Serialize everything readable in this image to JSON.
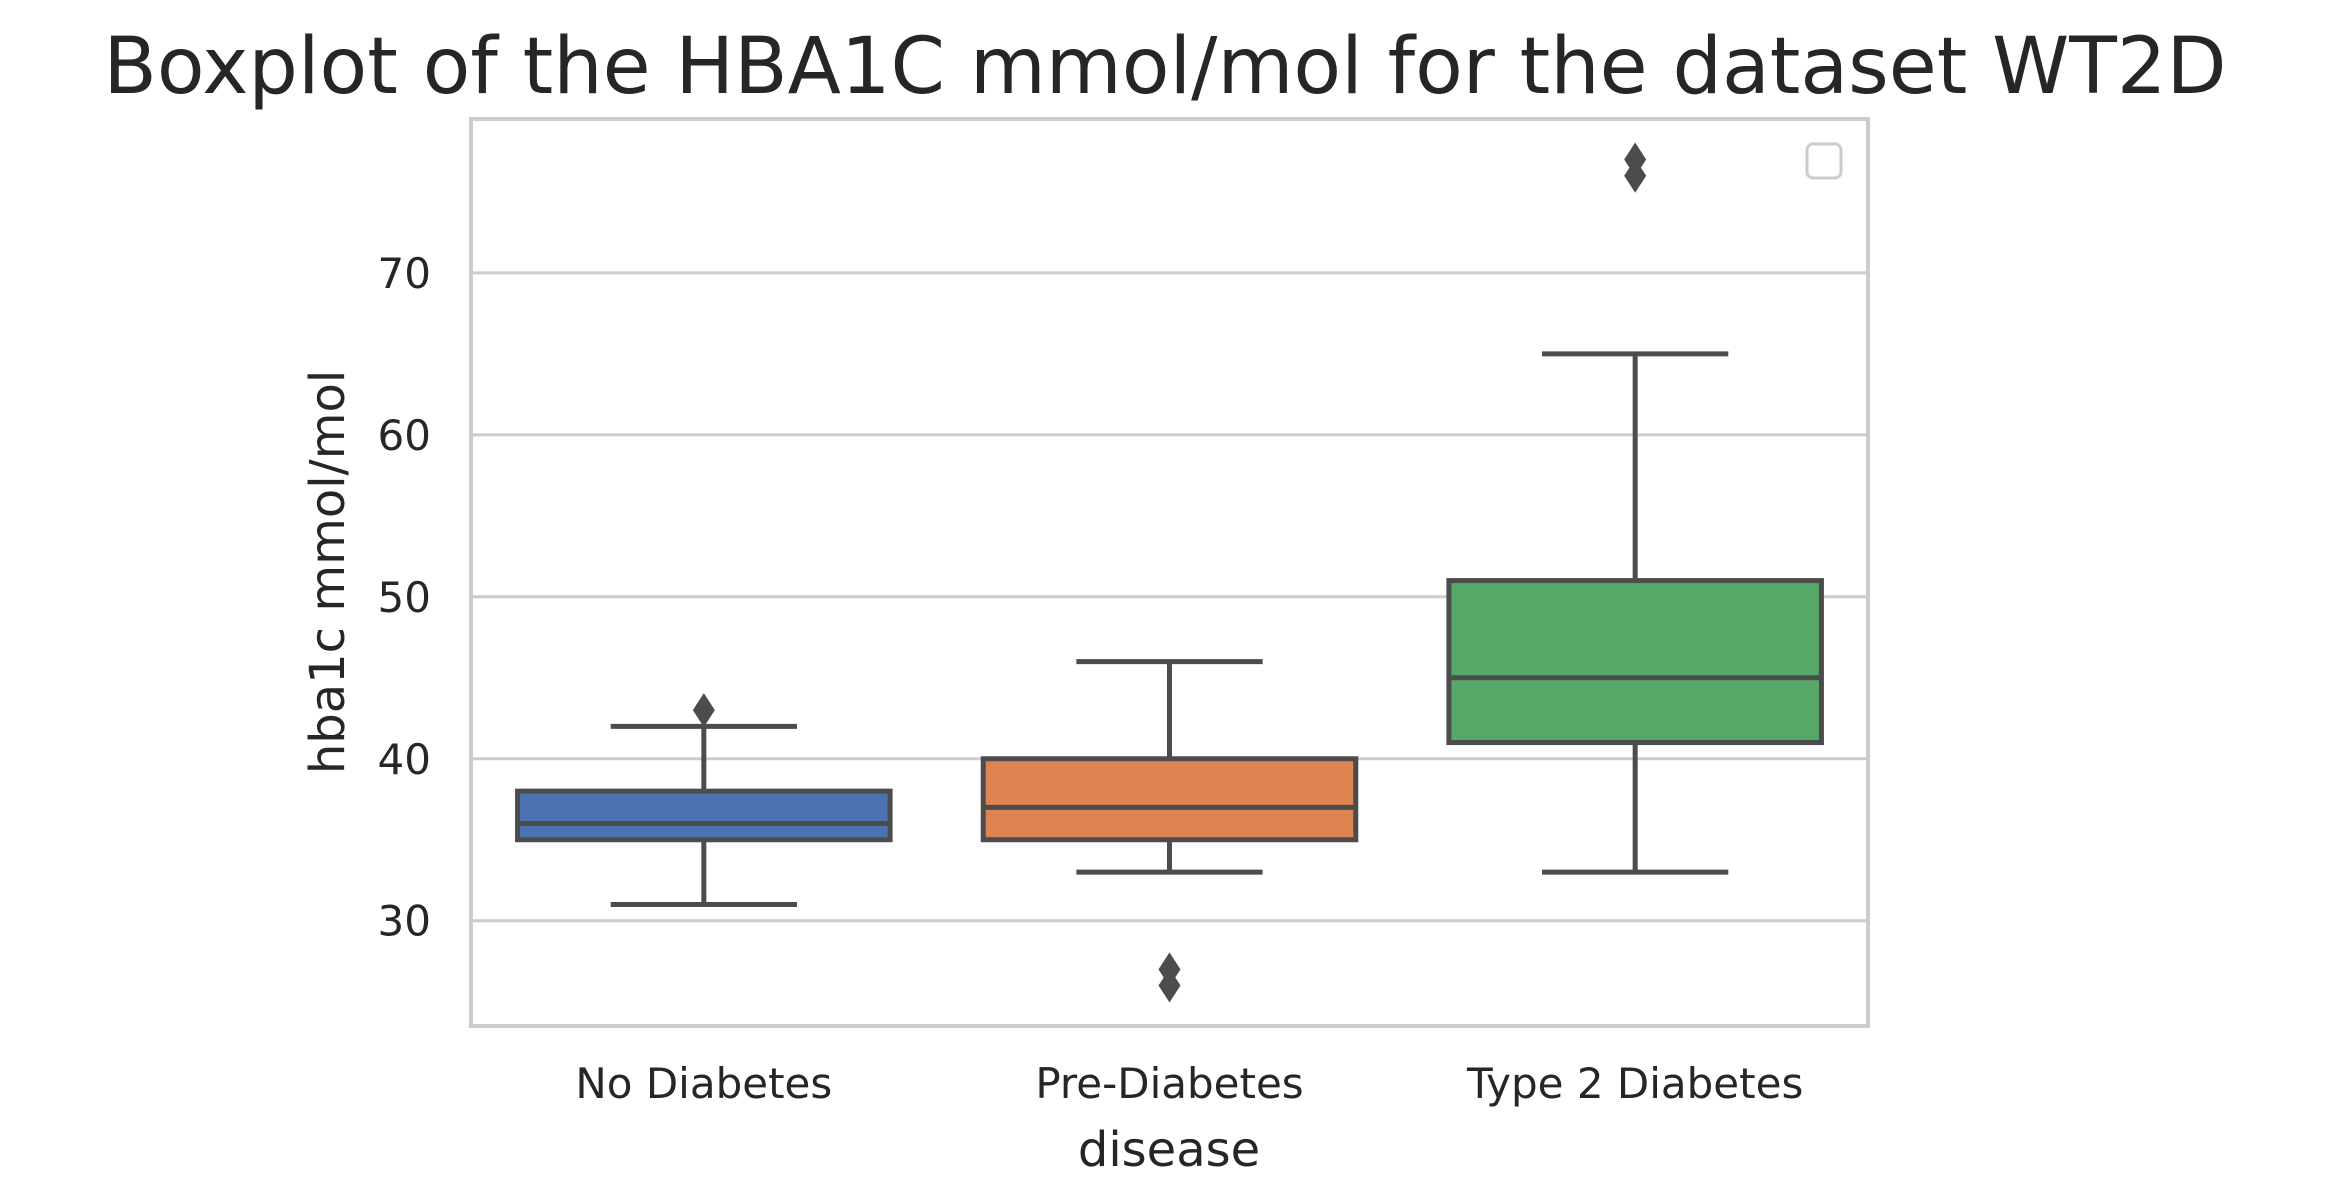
{
  "chart_data": {
    "type": "boxplot",
    "title": "Boxplot of the HBA1C mmol/mol for the dataset WT2D",
    "xlabel": "disease",
    "ylabel": "hba1c mmol/mol",
    "ylim": [
      23.5,
      79.5
    ],
    "yticks": [
      30,
      40,
      50,
      60,
      70
    ],
    "grid": true,
    "legend": "top-right (empty)",
    "categories": [
      "No Diabetes",
      "Pre-Diabetes",
      "Type 2 Diabetes"
    ],
    "boxes": [
      {
        "category": "No Diabetes",
        "whisker_low": 31,
        "q1": 35,
        "median": 36,
        "q3": 38,
        "whisker_high": 42,
        "outliers": [
          43
        ],
        "color": "#4c72b0"
      },
      {
        "category": "Pre-Diabetes",
        "whisker_low": 33,
        "q1": 35,
        "median": 37,
        "q3": 40,
        "whisker_high": 46,
        "outliers": [
          26,
          27
        ],
        "color": "#dd8452"
      },
      {
        "category": "Type 2 Diabetes",
        "whisker_low": 33,
        "q1": 41,
        "median": 45,
        "q3": 51,
        "whisker_high": 65,
        "outliers": [
          76,
          77
        ],
        "color": "#55a868"
      }
    ]
  }
}
